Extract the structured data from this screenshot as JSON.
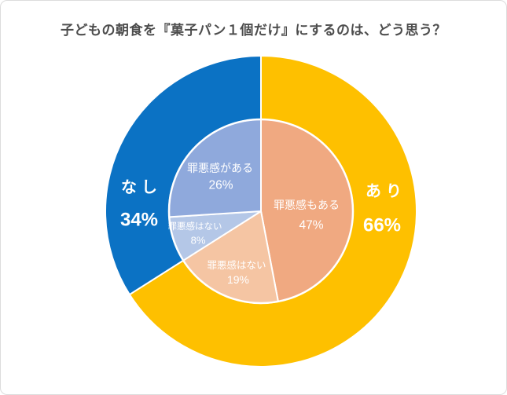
{
  "title": {
    "text": "子どもの朝食を『菓子パン１個だけ』にするのは、どう思う？",
    "color": "#4d4d4d"
  },
  "chart_data": {
    "type": "pie",
    "variant": "nested pie (pie-in-pie): outer ring = overall answer, inner pie = guilt-feeling breakdown",
    "start_angle_deg": 0,
    "direction": "clockwise",
    "label_color": "#ffffff",
    "outer": {
      "slices": [
        {
          "label": "あり",
          "value": 66,
          "pct_text": "66%",
          "color": "#FEC000"
        },
        {
          "label": "なし",
          "value": 34,
          "pct_text": "34%",
          "color": "#0B72C4"
        }
      ]
    },
    "inner": {
      "slices": [
        {
          "label": "罪悪感もある",
          "value": 47,
          "pct_text": "47%",
          "color": "#F0A981",
          "parent": "あり"
        },
        {
          "label": "罪悪感はない",
          "value": 19,
          "pct_text": "19%",
          "color": "#F5C5A3",
          "parent": "あり"
        },
        {
          "label": "罪悪感はない",
          "value": 8,
          "pct_text": "8%",
          "color": "#B4C7E7",
          "parent": "なし"
        },
        {
          "label": "罪悪感がある",
          "value": 26,
          "pct_text": "26%",
          "color": "#8FA9DC",
          "parent": "なし"
        }
      ]
    }
  }
}
